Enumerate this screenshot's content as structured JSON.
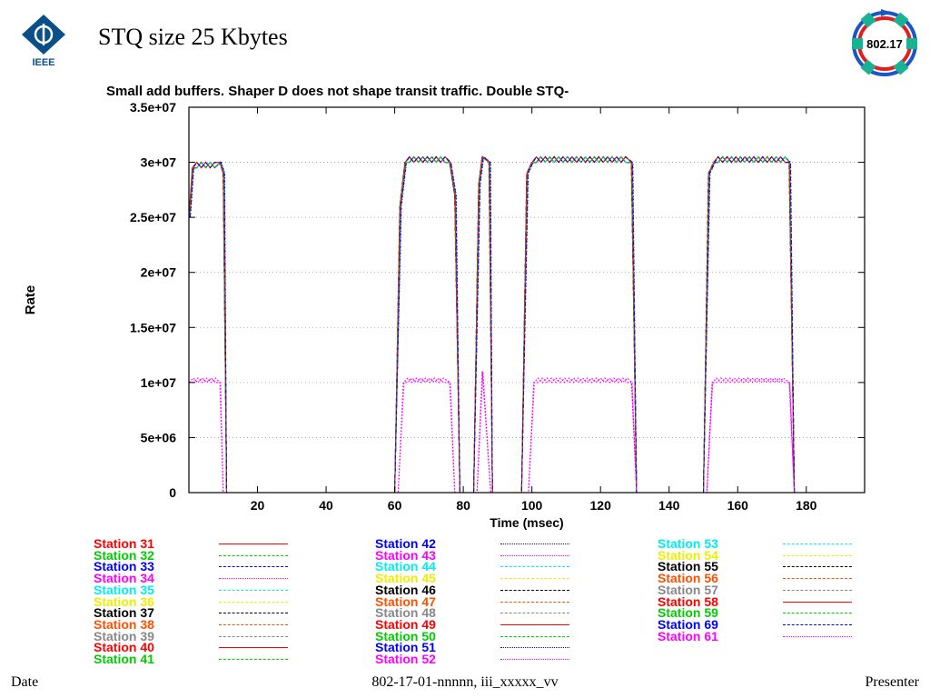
{
  "slide": {
    "title": "STQ size 25 Kbytes",
    "ring_logo_text": "802.17",
    "ieee_logo_text": "IEEE"
  },
  "footer": {
    "date": "Date",
    "doc_id": "802-17-01-nnnnn, iii_xxxxx_vv",
    "presenter": "Presenter"
  },
  "colors": {
    "red": "#ff0000",
    "green": "#00cc00",
    "blue": "#0000ff",
    "magenta": "#ff00ff",
    "cyan": "#00eeee",
    "yellow": "#eeee00",
    "black": "#000000",
    "orange": "#ff5000",
    "gray": "#888888"
  },
  "chart_data": {
    "type": "line",
    "title": "Small add buffers. Shaper D does not shape transit traffic. Double STQ-",
    "xlabel": "Time (msec)",
    "ylabel": "Rate",
    "xlim": [
      0,
      197
    ],
    "ylim": [
      0,
      35000000
    ],
    "x_ticks": [
      20,
      40,
      60,
      80,
      100,
      120,
      140,
      160,
      180
    ],
    "x_tick_labels": [
      "20",
      "40",
      "60",
      "80",
      "100",
      "120",
      "140",
      "160",
      "180"
    ],
    "y_ticks": [
      0,
      5000000,
      10000000,
      15000000,
      20000000,
      25000000,
      30000000,
      35000000
    ],
    "y_tick_labels": [
      "0",
      "5e+06",
      "1e+07",
      "1.5e+07",
      "2e+07",
      "2.5e+07",
      "3e+07",
      "3.5e+07"
    ],
    "grid": "horizontal dotted",
    "legend_placement": "below",
    "series_template": {
      "full": [
        [
          0,
          25000000
        ],
        [
          1,
          29500000
        ],
        [
          9,
          30000000
        ],
        [
          10,
          29000000
        ],
        [
          11,
          0
        ],
        [
          60,
          0
        ],
        [
          61.5,
          26000000
        ],
        [
          63,
          30000000
        ],
        [
          76,
          30000000
        ],
        [
          77.5,
          27000000
        ],
        [
          79,
          0
        ],
        [
          83,
          0
        ],
        [
          84.5,
          28000000
        ],
        [
          85.5,
          30500000
        ],
        [
          87.5,
          30000000
        ],
        [
          88.5,
          0
        ],
        [
          97,
          0
        ],
        [
          98.5,
          29000000
        ],
        [
          100,
          30000000
        ],
        [
          129,
          30000000
        ],
        [
          130.5,
          0
        ],
        [
          150,
          0
        ],
        [
          151.5,
          29000000
        ],
        [
          153,
          30000000
        ],
        [
          175,
          30000000
        ],
        [
          176.5,
          0
        ],
        [
          197,
          0
        ]
      ],
      "limited": [
        [
          0,
          10000000
        ],
        [
          9,
          10000000
        ],
        [
          10,
          0
        ],
        [
          61,
          0
        ],
        [
          62.5,
          10000000
        ],
        [
          76,
          10000000
        ],
        [
          77.5,
          0
        ],
        [
          84,
          0
        ],
        [
          85.5,
          11000000
        ],
        [
          88,
          0
        ],
        [
          99,
          0
        ],
        [
          100.5,
          10000000
        ],
        [
          129,
          10000000
        ],
        [
          130.5,
          0
        ],
        [
          151,
          0
        ],
        [
          152.5,
          10000000
        ],
        [
          175,
          10000000
        ],
        [
          176.5,
          0
        ],
        [
          197,
          0
        ]
      ]
    },
    "series": [
      {
        "name": "Station 31",
        "color": "#ff0000",
        "dash": "solid",
        "profile": "full",
        "shift": 0
      },
      {
        "name": "Station 32",
        "color": "#00cc00",
        "dash": "dashed",
        "profile": "full",
        "shift": 0.3
      },
      {
        "name": "Station 33",
        "color": "#0000ff",
        "dash": "dashed",
        "profile": "full",
        "shift": 0.5
      },
      {
        "name": "Station 34",
        "color": "#ff00ff",
        "dash": "dotted",
        "profile": "limited",
        "shift": 0
      },
      {
        "name": "Station 35",
        "color": "#00eeee",
        "dash": "dashdot",
        "profile": "full",
        "shift": 0.7
      },
      {
        "name": "Station 36",
        "color": "#eeee00",
        "dash": "dashdot",
        "profile": "full",
        "shift": 0.2
      },
      {
        "name": "Station 37",
        "color": "#000000",
        "dash": "dashed",
        "profile": "full",
        "shift": 0.4
      },
      {
        "name": "Station 38",
        "color": "#ff5000",
        "dash": "dashed",
        "profile": "full",
        "shift": -0.2
      },
      {
        "name": "Station 39",
        "color": "#888888",
        "dash": "dashed",
        "profile": "full",
        "shift": 0.6
      },
      {
        "name": "Station 40",
        "color": "#ff0000",
        "dash": "solid",
        "profile": "full",
        "shift": 0.1
      },
      {
        "name": "Station 41",
        "color": "#00cc00",
        "dash": "dashed",
        "profile": "full",
        "shift": 0.8
      },
      {
        "name": "Station 42",
        "color": "#0000ff",
        "dash": "dotted",
        "profile": "full",
        "shift": 1.0
      },
      {
        "name": "Station 43",
        "color": "#ff00ff",
        "dash": "dotted",
        "profile": "limited",
        "shift": 0.4
      },
      {
        "name": "Station 44",
        "color": "#00eeee",
        "dash": "dashdot",
        "profile": "full",
        "shift": 0.9
      },
      {
        "name": "Station 45",
        "color": "#eeee00",
        "dash": "dashdot",
        "profile": "full",
        "shift": 0.5
      },
      {
        "name": "Station 46",
        "color": "#000000",
        "dash": "dashed",
        "profile": "full",
        "shift": -0.1
      },
      {
        "name": "Station 47",
        "color": "#ff5000",
        "dash": "dashed",
        "profile": "full",
        "shift": 0.3
      },
      {
        "name": "Station 48",
        "color": "#888888",
        "dash": "dashed",
        "profile": "full",
        "shift": 0.2
      },
      {
        "name": "Station 49",
        "color": "#ff0000",
        "dash": "solid",
        "profile": "full",
        "shift": 0.6
      },
      {
        "name": "Station 50",
        "color": "#00cc00",
        "dash": "dashed",
        "profile": "full",
        "shift": 1.2
      },
      {
        "name": "Station 51",
        "color": "#0000ff",
        "dash": "dotted",
        "profile": "full",
        "shift": 1.5
      },
      {
        "name": "Station 52",
        "color": "#ff00ff",
        "dash": "dotted",
        "profile": "limited",
        "shift": 0.8
      },
      {
        "name": "Station 53",
        "color": "#00eeee",
        "dash": "dashdot",
        "profile": "full",
        "shift": 0.1
      },
      {
        "name": "Station 54",
        "color": "#eeee00",
        "dash": "dashdot",
        "profile": "full",
        "shift": 0.4
      },
      {
        "name": "Station 55",
        "color": "#000000",
        "dash": "dashed",
        "profile": "full",
        "shift": 0.7
      },
      {
        "name": "Station 56",
        "color": "#ff5000",
        "dash": "dashed",
        "profile": "full",
        "shift": 0.5
      },
      {
        "name": "Station 57",
        "color": "#888888",
        "dash": "dashed",
        "profile": "full",
        "shift": 0.9
      },
      {
        "name": "Station 58",
        "color": "#ff0000",
        "dash": "solid",
        "profile": "full",
        "shift": 0.2
      },
      {
        "name": "Station 59",
        "color": "#00cc00",
        "dash": "dashed",
        "profile": "full",
        "shift": 0.6
      },
      {
        "name": "Station 69",
        "color": "#0000ff",
        "dash": "dashed",
        "profile": "full",
        "shift": 1.1
      },
      {
        "name": "Station 61",
        "color": "#ff00ff",
        "dash": "dotted",
        "profile": "limited",
        "shift": 0.3
      }
    ]
  }
}
